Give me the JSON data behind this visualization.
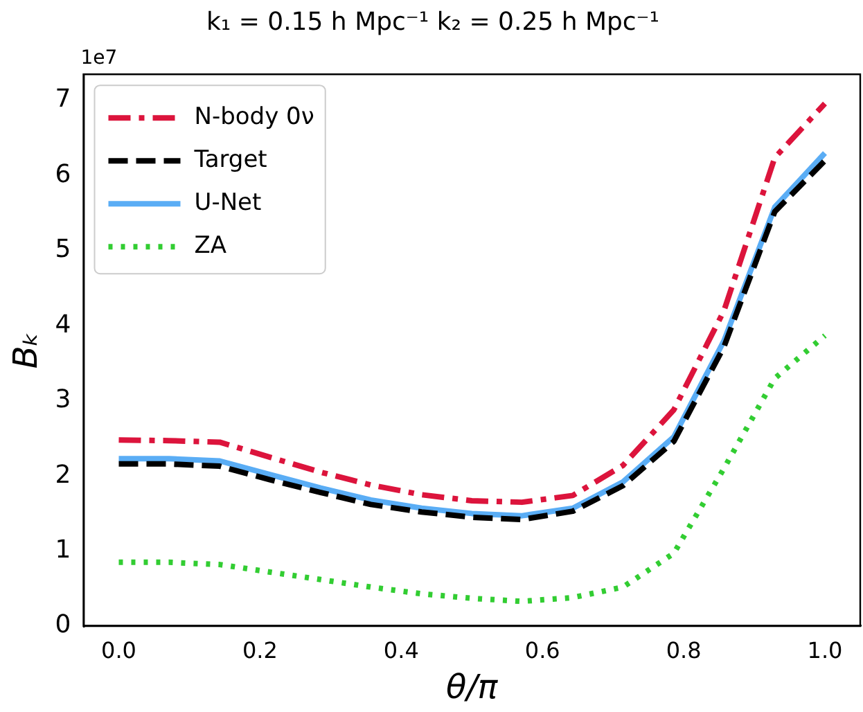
{
  "chart_data": {
    "type": "line",
    "title": "k₁ = 0.15 h Mpc⁻¹ k₂ = 0.25 h Mpc⁻¹",
    "xlabel": "θ/π",
    "ylabel": "Bₖ",
    "annotations": [
      "1e7"
    ],
    "x": [
      0,
      0.071,
      0.143,
      0.214,
      0.286,
      0.357,
      0.429,
      0.5,
      0.571,
      0.643,
      0.714,
      0.786,
      0.857,
      0.929,
      1.0
    ],
    "series": [
      {
        "name": "N-body 0ν",
        "color": "#dc143c",
        "line_style": "dashdot",
        "values": [
          2.48,
          2.47,
          2.45,
          2.25,
          2.05,
          1.88,
          1.75,
          1.67,
          1.65,
          1.74,
          2.14,
          2.88,
          4.2,
          6.24,
          6.96
        ]
      },
      {
        "name": "Target",
        "color": "#000000",
        "line_style": "dashed",
        "values": [
          2.16,
          2.16,
          2.13,
          1.95,
          1.78,
          1.62,
          1.52,
          1.45,
          1.42,
          1.53,
          1.87,
          2.46,
          3.72,
          5.52,
          6.2
        ]
      },
      {
        "name": "U-Net",
        "color": "#5aadf5",
        "line_style": "solid",
        "values": [
          2.23,
          2.23,
          2.2,
          2.02,
          1.84,
          1.68,
          1.57,
          1.5,
          1.47,
          1.57,
          1.92,
          2.52,
          3.8,
          5.58,
          6.3
        ]
      },
      {
        "name": "ZA",
        "color": "#32cd32",
        "line_style": "dotted",
        "values": [
          0.85,
          0.85,
          0.82,
          0.72,
          0.62,
          0.52,
          0.43,
          0.37,
          0.33,
          0.38,
          0.52,
          0.97,
          2.1,
          3.3,
          3.87
        ]
      }
    ],
    "xlim": [
      -0.05,
      1.05
    ],
    "xticks": [
      {
        "value": 0,
        "label": "0.0"
      },
      {
        "value": 0.2,
        "label": "0.2"
      },
      {
        "value": 0.4,
        "label": "0.4"
      },
      {
        "value": 0.6,
        "label": "0.6"
      },
      {
        "value": 0.8,
        "label": "0.8"
      },
      {
        "value": 1,
        "label": "1.0"
      }
    ],
    "ylim": [
      0,
      7.35
    ],
    "yticks": [
      0,
      1,
      2,
      3,
      4,
      5,
      6,
      7
    ],
    "grid": false,
    "legend": "top left",
    "marker": "none"
  }
}
